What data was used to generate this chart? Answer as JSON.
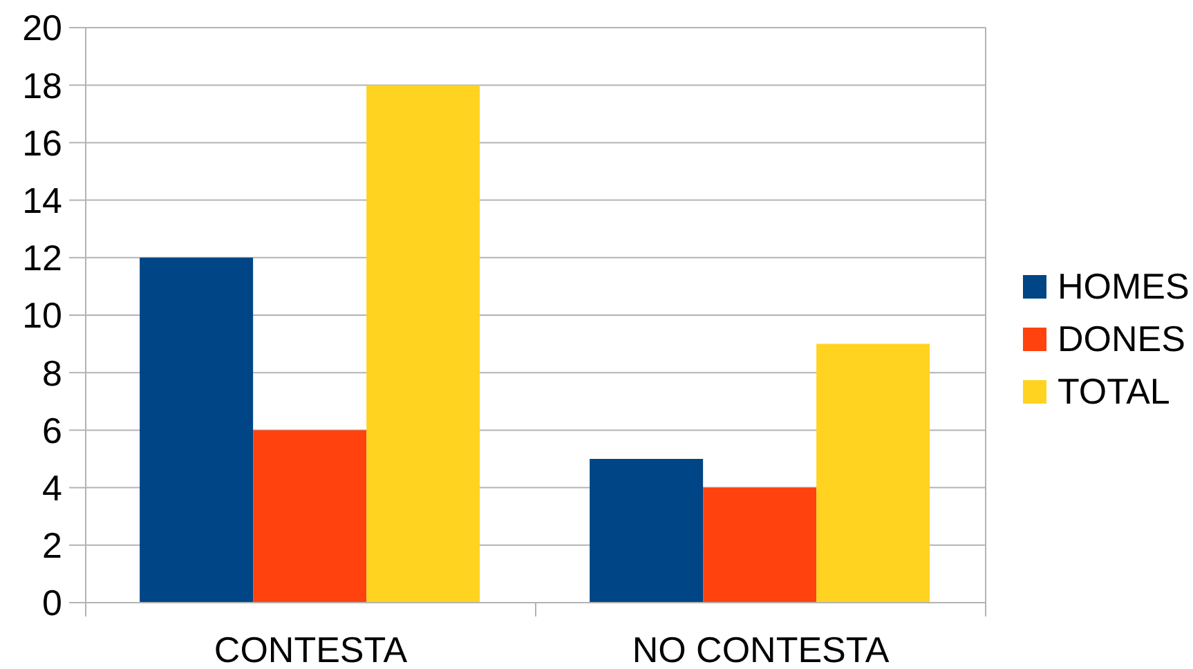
{
  "chart_data": {
    "type": "bar",
    "categories": [
      "CONTESTA",
      "NO CONTESTA"
    ],
    "series": [
      {
        "name": "HOMES",
        "color": "#004586",
        "values": [
          12,
          5
        ]
      },
      {
        "name": "DONES",
        "color": "#ff420e",
        "values": [
          6,
          4
        ]
      },
      {
        "name": "TOTAL",
        "color": "#ffd320",
        "values": [
          18,
          9
        ]
      }
    ],
    "ylim": [
      0,
      20
    ],
    "yticks": [
      0,
      2,
      4,
      6,
      8,
      10,
      12,
      14,
      16,
      18,
      20
    ],
    "grid": "y",
    "legend": "right"
  }
}
